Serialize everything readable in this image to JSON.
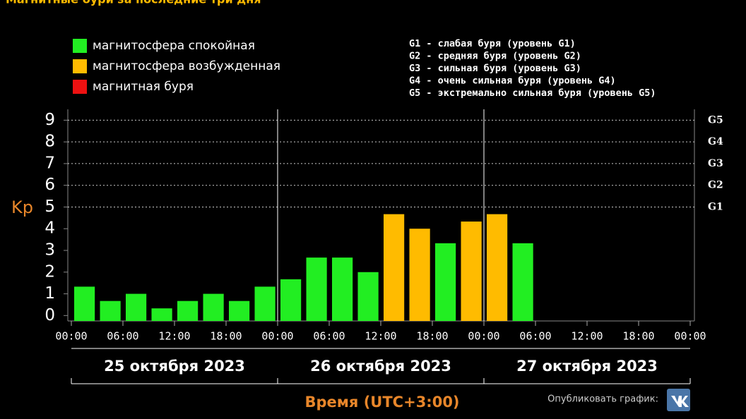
{
  "chart_data": {
    "type": "bar",
    "title": "Магнитные бури за последние три дня",
    "y_label": "Kp",
    "x_label": "Время (UTC+3:00)",
    "x": [
      0,
      3,
      6,
      9,
      12,
      15,
      18,
      21,
      24,
      27,
      30,
      33,
      36,
      39,
      42,
      45,
      48,
      51,
      54,
      57,
      60,
      63,
      66,
      69
    ],
    "values": [
      1.33,
      0.67,
      1,
      0.33,
      0.67,
      1,
      0.67,
      1.33,
      1.67,
      2.67,
      2.67,
      2,
      4.67,
      4,
      3.33,
      4.33,
      4.67,
      3.33,
      null,
      null,
      null,
      null,
      null,
      null
    ],
    "colors": [
      "#22ee22",
      "#22ee22",
      "#22ee22",
      "#22ee22",
      "#22ee22",
      "#22ee22",
      "#22ee22",
      "#22ee22",
      "#22ee22",
      "#22ee22",
      "#22ee22",
      "#22ee22",
      "#ffbb00",
      "#ffbb00",
      "#22ee22",
      "#ffbb00",
      "#ffbb00",
      "#22ee22",
      "#22ee22",
      "#22ee22",
      "#22ee22",
      "#22ee22",
      "#22ee22",
      "#22ee22"
    ],
    "bar_width": 2.4,
    "xlim": [
      0,
      72
    ],
    "xticks": [
      {
        "value": 0,
        "label": "00:00"
      },
      {
        "value": 6,
        "label": "06:00"
      },
      {
        "value": 12,
        "label": "12:00"
      },
      {
        "value": 18,
        "label": "18:00"
      },
      {
        "value": 24,
        "label": "00:00"
      },
      {
        "value": 30,
        "label": "06:00"
      },
      {
        "value": 36,
        "label": "12:00"
      },
      {
        "value": 42,
        "label": "18:00"
      },
      {
        "value": 48,
        "label": "00:00"
      },
      {
        "value": 54,
        "label": "06:00"
      },
      {
        "value": 60,
        "label": "12:00"
      },
      {
        "value": 66,
        "label": "18:00"
      },
      {
        "value": 72,
        "label": "00:00"
      }
    ],
    "days": [
      {
        "label": "25 октября 2023",
        "from": 0,
        "to": 24
      },
      {
        "label": "26 октября 2023",
        "from": 24,
        "to": 48
      },
      {
        "label": "27 октября 2023",
        "from": 48,
        "to": 72
      }
    ],
    "ylim": [
      -0.25,
      9.5
    ],
    "yticks": [
      0,
      1,
      2,
      3,
      4,
      5,
      6,
      7,
      8,
      9
    ],
    "gticks": [
      {
        "value": 5,
        "label": "G1"
      },
      {
        "value": 6,
        "label": "G2"
      },
      {
        "value": 7,
        "label": "G3"
      },
      {
        "value": 8,
        "label": "G4"
      },
      {
        "value": 9,
        "label": "G5"
      }
    ],
    "legend": [
      {
        "name": "магнитосфера спокойная",
        "color": "#22ee22"
      },
      {
        "name": "магнитосфера возбужденная",
        "color": "#ffbb00"
      },
      {
        "name": "магнитная буря",
        "color": "#ee1111"
      }
    ],
    "storm_levels": [
      "G1 - слабая буря (уровень G1)",
      "G2 - средняя буря (уровень G2)",
      "G3 - сильная буря (уровень G3)",
      "G4 - очень сильная буря (уровень G4)",
      "G5 - экстремально сильная буря (уровень G5)"
    ],
    "share_label": "Опубликовать график:"
  }
}
